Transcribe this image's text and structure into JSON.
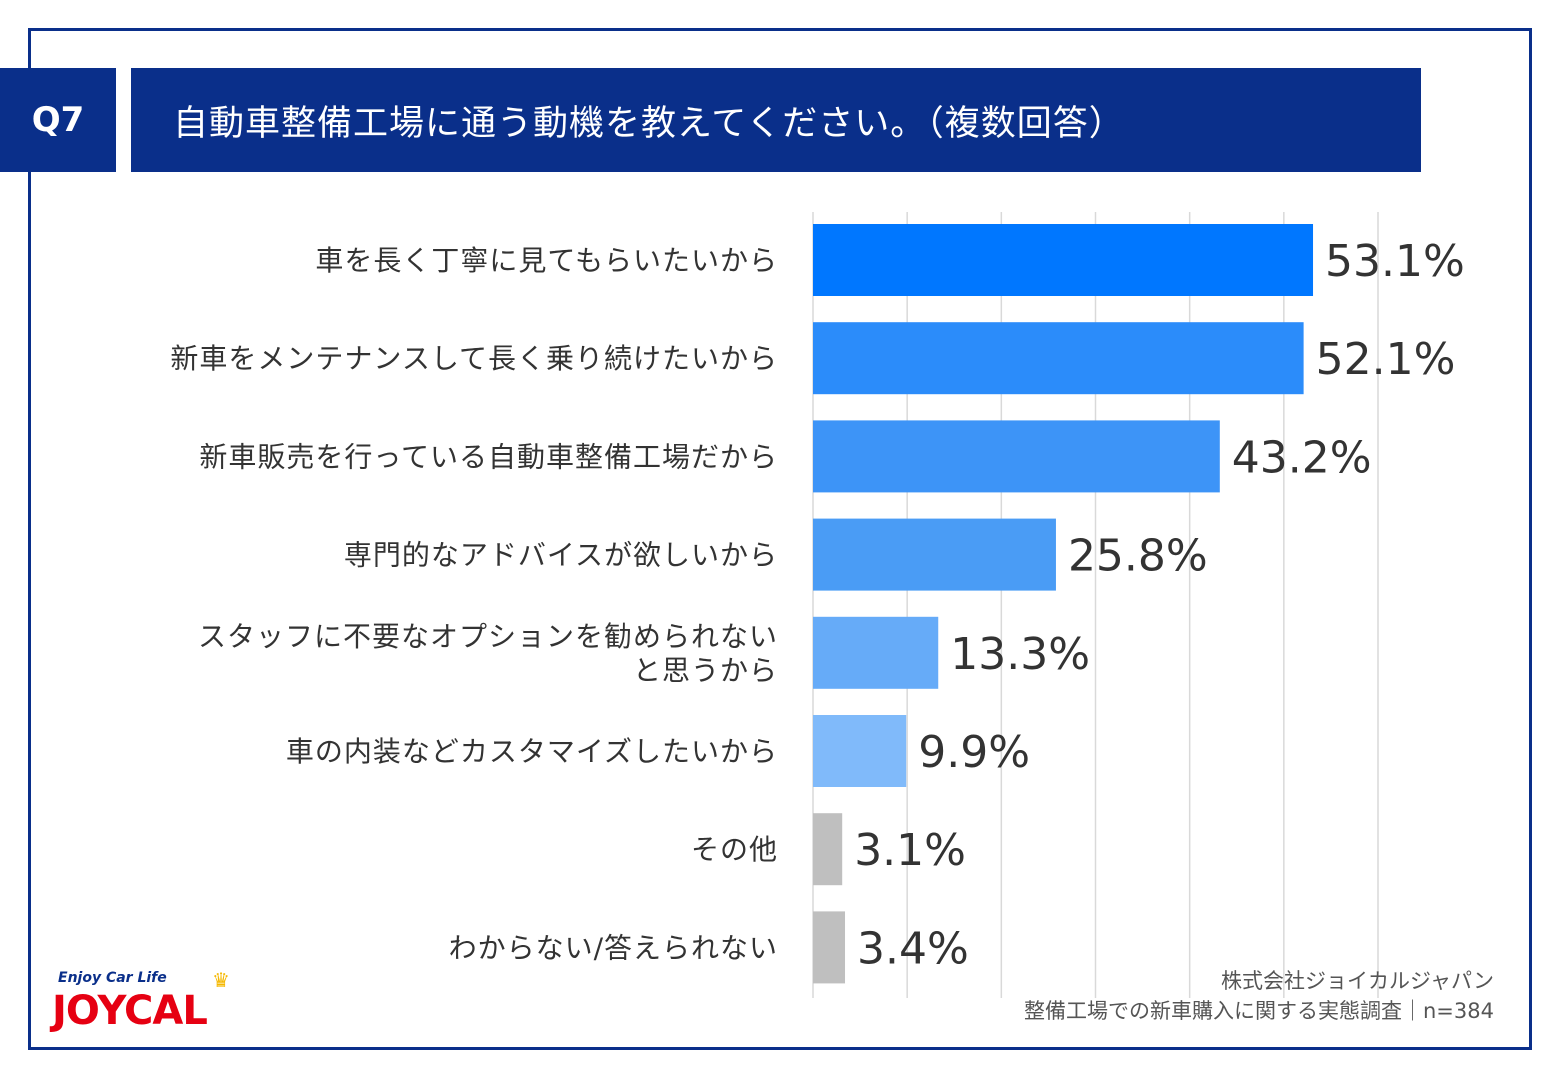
{
  "header": {
    "question_number": "Q7",
    "title": "自動車整備工場に通う動機を教えてください。（複数回答）"
  },
  "chart_data": {
    "type": "bar",
    "orientation": "horizontal",
    "categories": [
      [
        "車を長く丁寧に見てもらいたいから"
      ],
      [
        "新車をメンテナンスして長く乗り続けたいから"
      ],
      [
        "新車販売を行っている自動車整備工場だから"
      ],
      [
        "専門的なアドバイスが欲しいから"
      ],
      [
        "スタッフに不要なオプションを勧められない",
        "と思うから"
      ],
      [
        "車の内装などカスタマイズしたいから"
      ],
      [
        "その他"
      ],
      [
        "わからない/答えられない"
      ]
    ],
    "values": [
      53.1,
      52.1,
      43.2,
      25.8,
      13.3,
      9.9,
      3.1,
      3.4
    ],
    "value_labels": [
      "53.1%",
      "52.1%",
      "43.2%",
      "25.8%",
      "13.3%",
      "9.9%",
      "3.1%",
      "3.4%"
    ],
    "bar_colors": [
      "#0077ff",
      "#2b8cfa",
      "#3d94f7",
      "#4a9cf5",
      "#66abf8",
      "#80bafa",
      "#bfbfbf",
      "#bfbfbf"
    ],
    "xlim": [
      0,
      60
    ],
    "grid": true,
    "grid_color": "#d9d9d9"
  },
  "source": {
    "line1": "株式会社ジョイカルジャパン",
    "line2": "整備工場での新車購入に関する実態調査｜n=384"
  },
  "logo": {
    "tagline": "Enjoy Car Life",
    "wordmark": "JOYCAL",
    "crown": "♛",
    "brand_color": "#e60012"
  }
}
